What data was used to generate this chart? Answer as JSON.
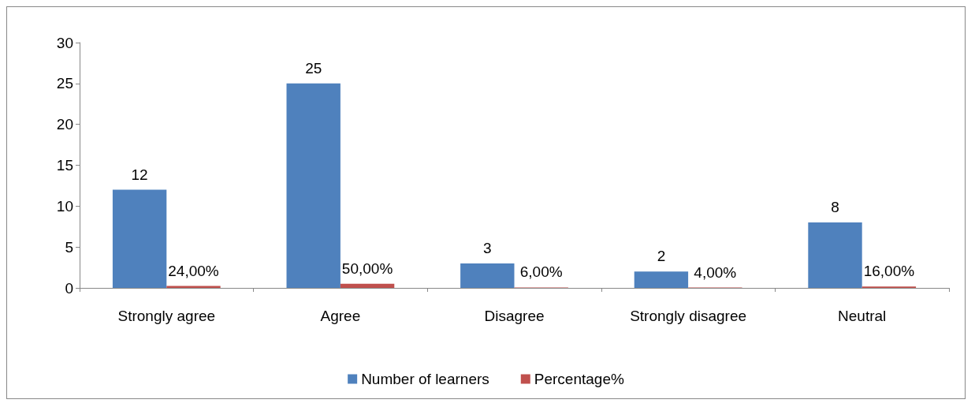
{
  "chart_data": {
    "type": "bar",
    "categories": [
      "Strongly agree",
      "Agree",
      "Disagree",
      "Strongly disagree",
      "Neutral"
    ],
    "series": [
      {
        "name": "Number of learners",
        "color": "#4f81bd",
        "values": [
          12,
          25,
          3,
          2,
          8
        ],
        "value_labels": [
          "12",
          "25",
          "3",
          "2",
          "8"
        ]
      },
      {
        "name": "Percentage%",
        "color": "#c0504d",
        "values": [
          0.24,
          0.5,
          0.06,
          0.04,
          0.16
        ],
        "value_labels": [
          "24,00%",
          "50,00%",
          "6,00%",
          "4,00%",
          "16,00%"
        ]
      }
    ],
    "ylim": [
      0,
      30
    ],
    "yticks": [
      0,
      5,
      10,
      15,
      20,
      25,
      30
    ],
    "grid": false,
    "legend": "bottom"
  }
}
